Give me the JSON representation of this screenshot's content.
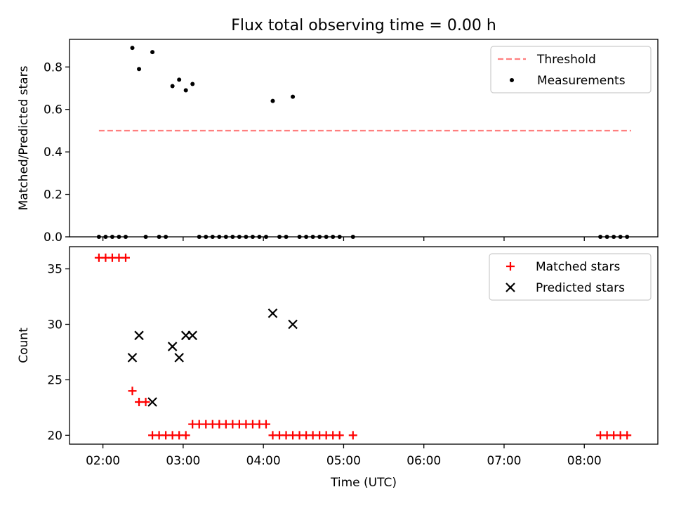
{
  "title": "Flux total observing time = 0.00 h",
  "chart_data": [
    {
      "type": "scatter",
      "name": "ratio-panel",
      "ylabel": "Matched/Predicted stars",
      "xlabel": "",
      "ylim": [
        0,
        0.93
      ],
      "xlim": [
        "01:35",
        "08:55"
      ],
      "yticks": [
        0.0,
        0.2,
        0.4,
        0.6,
        0.8
      ],
      "ytick_labels": [
        "0.0",
        "0.2",
        "0.4",
        "0.6",
        "0.8"
      ],
      "legend": {
        "placement": "top-right",
        "entries": [
          "Threshold",
          "Measurements"
        ]
      },
      "threshold": {
        "name": "Threshold",
        "value": 0.5,
        "x_range": [
          "01:57",
          "08:35"
        ],
        "color": "#ff7f7f",
        "style": "dashed"
      },
      "series": [
        {
          "name": "Measurements",
          "marker": "dot",
          "color": "#000000",
          "points": [
            [
              "01:57",
              0.0
            ],
            [
              "02:02",
              0.0
            ],
            [
              "02:07",
              0.0
            ],
            [
              "02:12",
              0.0
            ],
            [
              "02:17",
              0.0
            ],
            [
              "02:22",
              0.89
            ],
            [
              "02:27",
              0.79
            ],
            [
              "02:32",
              0.0
            ],
            [
              "02:37",
              0.87
            ],
            [
              "02:42",
              0.0
            ],
            [
              "02:47",
              0.0
            ],
            [
              "02:52",
              0.71
            ],
            [
              "02:57",
              0.74
            ],
            [
              "03:02",
              0.69
            ],
            [
              "03:07",
              0.72
            ],
            [
              "03:12",
              0.0
            ],
            [
              "03:17",
              0.0
            ],
            [
              "03:22",
              0.0
            ],
            [
              "03:27",
              0.0
            ],
            [
              "03:32",
              0.0
            ],
            [
              "03:37",
              0.0
            ],
            [
              "03:42",
              0.0
            ],
            [
              "03:47",
              0.0
            ],
            [
              "03:52",
              0.0
            ],
            [
              "03:57",
              0.0
            ],
            [
              "04:02",
              0.0
            ],
            [
              "04:07",
              0.64
            ],
            [
              "04:12",
              0.0
            ],
            [
              "04:17",
              0.0
            ],
            [
              "04:22",
              0.66
            ],
            [
              "04:27",
              0.0
            ],
            [
              "04:32",
              0.0
            ],
            [
              "04:37",
              0.0
            ],
            [
              "04:42",
              0.0
            ],
            [
              "04:47",
              0.0
            ],
            [
              "04:52",
              0.0
            ],
            [
              "04:57",
              0.0
            ],
            [
              "05:07",
              0.0
            ],
            [
              "08:12",
              0.0
            ],
            [
              "08:17",
              0.0
            ],
            [
              "08:22",
              0.0
            ],
            [
              "08:27",
              0.0
            ],
            [
              "08:32",
              0.0
            ]
          ]
        }
      ]
    },
    {
      "type": "scatter",
      "name": "count-panel",
      "ylabel": "Count",
      "xlabel": "Time (UTC)",
      "ylim": [
        19.2,
        37.0
      ],
      "xlim": [
        "01:35",
        "08:55"
      ],
      "yticks": [
        20,
        25,
        30,
        35
      ],
      "ytick_labels": [
        "20",
        "25",
        "30",
        "35"
      ],
      "xticks": [
        "02:00",
        "03:00",
        "04:00",
        "05:00",
        "06:00",
        "07:00",
        "08:00"
      ],
      "legend": {
        "placement": "top-right",
        "entries": [
          "Matched stars",
          "Predicted stars"
        ]
      },
      "series": [
        {
          "name": "Matched stars",
          "marker": "plus",
          "color": "#ff0000",
          "points": [
            [
              "01:57",
              36
            ],
            [
              "02:02",
              36
            ],
            [
              "02:07",
              36
            ],
            [
              "02:12",
              36
            ],
            [
              "02:17",
              36
            ],
            [
              "02:22",
              24
            ],
            [
              "02:27",
              23
            ],
            [
              "02:32",
              23
            ],
            [
              "02:37",
              20
            ],
            [
              "02:42",
              20
            ],
            [
              "02:47",
              20
            ],
            [
              "02:52",
              20
            ],
            [
              "02:57",
              20
            ],
            [
              "03:02",
              20
            ],
            [
              "03:07",
              21
            ],
            [
              "03:12",
              21
            ],
            [
              "03:17",
              21
            ],
            [
              "03:22",
              21
            ],
            [
              "03:27",
              21
            ],
            [
              "03:32",
              21
            ],
            [
              "03:37",
              21
            ],
            [
              "03:42",
              21
            ],
            [
              "03:47",
              21
            ],
            [
              "03:52",
              21
            ],
            [
              "03:57",
              21
            ],
            [
              "04:02",
              21
            ],
            [
              "04:07",
              20
            ],
            [
              "04:12",
              20
            ],
            [
              "04:17",
              20
            ],
            [
              "04:22",
              20
            ],
            [
              "04:27",
              20
            ],
            [
              "04:32",
              20
            ],
            [
              "04:37",
              20
            ],
            [
              "04:42",
              20
            ],
            [
              "04:47",
              20
            ],
            [
              "04:52",
              20
            ],
            [
              "04:57",
              20
            ],
            [
              "05:07",
              20
            ],
            [
              "08:12",
              20
            ],
            [
              "08:17",
              20
            ],
            [
              "08:22",
              20
            ],
            [
              "08:27",
              20
            ],
            [
              "08:32",
              20
            ]
          ]
        },
        {
          "name": "Predicted stars",
          "marker": "x",
          "color": "#000000",
          "points": [
            [
              "02:22",
              27
            ],
            [
              "02:27",
              29
            ],
            [
              "02:37",
              23
            ],
            [
              "02:52",
              28
            ],
            [
              "02:57",
              27
            ],
            [
              "03:02",
              29
            ],
            [
              "03:07",
              29
            ],
            [
              "04:07",
              31
            ],
            [
              "04:22",
              30
            ]
          ]
        }
      ]
    }
  ]
}
